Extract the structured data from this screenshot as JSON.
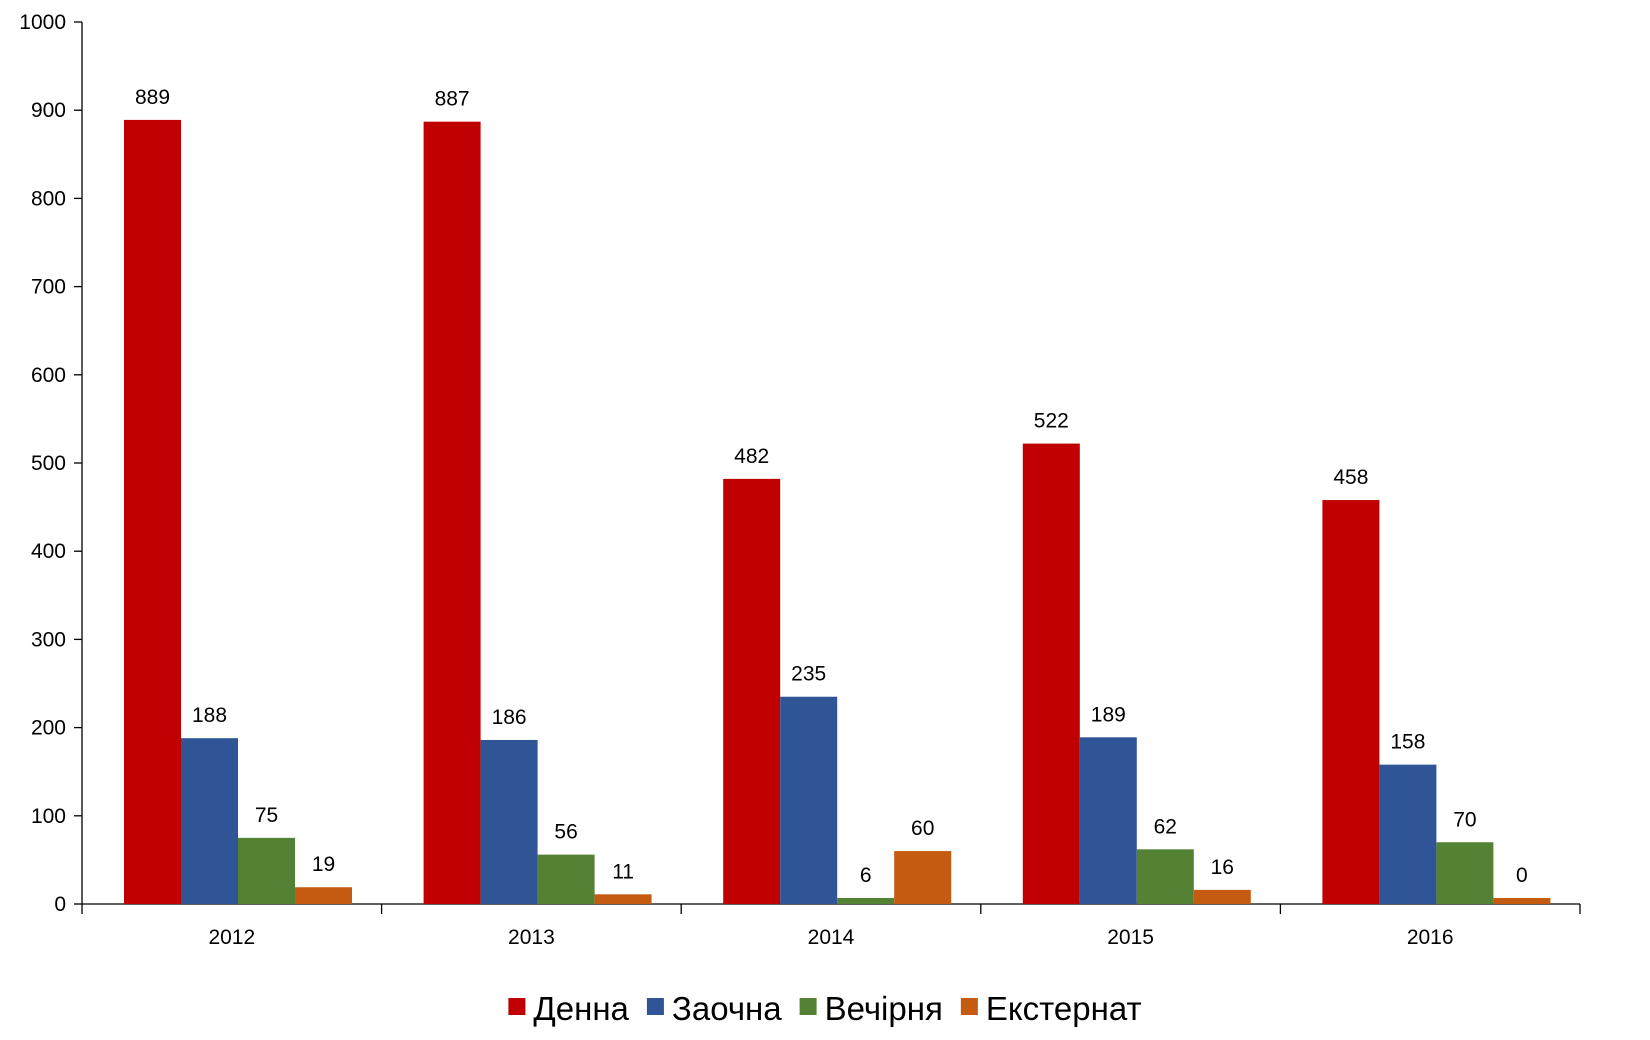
{
  "chart_data": {
    "type": "bar",
    "categories": [
      "2012",
      "2013",
      "2014",
      "2015",
      "2016"
    ],
    "series": [
      {
        "name": "Денна",
        "color": "#C00000",
        "values": [
          889,
          887,
          482,
          522,
          458
        ]
      },
      {
        "name": "Заочна",
        "color": "#2F5597",
        "values": [
          188,
          186,
          235,
          189,
          158
        ]
      },
      {
        "name": "Вечірня",
        "color": "#548235",
        "values": [
          75,
          56,
          6,
          62,
          70
        ]
      },
      {
        "name": "Екстернат",
        "color": "#C55A11",
        "values": [
          19,
          11,
          60,
          16,
          0
        ]
      }
    ],
    "ylim": [
      0,
      1000
    ],
    "y_ticks": [
      0,
      100,
      200,
      300,
      400,
      500,
      600,
      700,
      800,
      900,
      1000
    ],
    "grid": false,
    "legend_position": "bottom"
  }
}
